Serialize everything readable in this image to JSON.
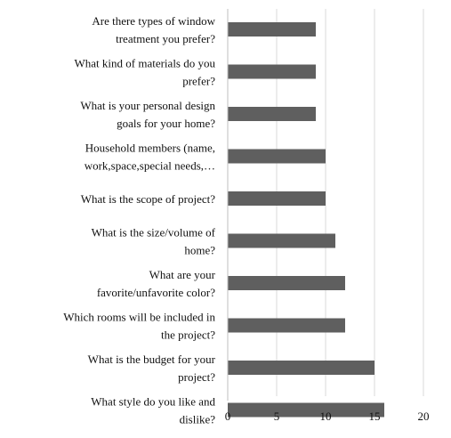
{
  "chart_data": {
    "type": "bar",
    "orientation": "horizontal",
    "categories": [
      [
        "Are there types of window",
        "treatment you prefer?"
      ],
      [
        "What kind of materials do you",
        "prefer?"
      ],
      [
        "What is your  personal design",
        "goals for your home?"
      ],
      [
        "Household members (name,",
        "work,space,special needs,…"
      ],
      [
        "What is the scope of  project?"
      ],
      [
        "What is the size/volume of",
        "home?"
      ],
      [
        "What are your",
        "favorite/unfavorite color?"
      ],
      [
        "Which rooms will be included in",
        "the project?"
      ],
      [
        "What is the budget for your",
        "project?"
      ],
      [
        "What style do you like and",
        "dislike?"
      ]
    ],
    "values": [
      9,
      9,
      9,
      10,
      10,
      11,
      12,
      12,
      15,
      16
    ],
    "xlim": [
      0,
      20
    ],
    "xticks": [
      0,
      5,
      10,
      15,
      20
    ],
    "grid": "vertical",
    "title": "",
    "xlabel": "",
    "ylabel": "",
    "colors": {
      "bar": "#5f5f5f",
      "grid": "#d9d9d9",
      "axis": "#bfbfbf"
    }
  }
}
